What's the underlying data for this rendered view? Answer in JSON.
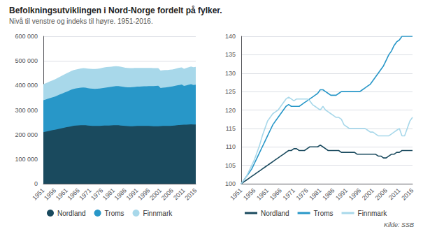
{
  "chart_data": [
    {
      "type": "area",
      "title": "Befolkningsutviklingen i Nord-Norge fordelt på fylker.",
      "subtitle": "Nivå til venstre og indeks til høyre. 1951-2016.",
      "stacked": true,
      "x": [
        1951,
        1952,
        1953,
        1954,
        1955,
        1956,
        1957,
        1958,
        1959,
        1960,
        1961,
        1962,
        1963,
        1964,
        1965,
        1966,
        1967,
        1968,
        1969,
        1970,
        1971,
        1972,
        1973,
        1974,
        1975,
        1976,
        1977,
        1978,
        1979,
        1980,
        1981,
        1982,
        1983,
        1984,
        1985,
        1986,
        1987,
        1988,
        1989,
        1990,
        1991,
        1992,
        1993,
        1994,
        1995,
        1996,
        1997,
        1998,
        1999,
        2000,
        2001,
        2002,
        2003,
        2004,
        2005,
        2006,
        2007,
        2008,
        2009,
        2010,
        2011,
        2012,
        2013,
        2014,
        2015,
        2016
      ],
      "xlim": [
        1951,
        2016
      ],
      "xticks": [
        1951,
        1956,
        1961,
        1966,
        1971,
        1976,
        1981,
        1986,
        1991,
        1996,
        2001,
        2006,
        2011,
        2016
      ],
      "ylim": [
        0,
        600000
      ],
      "yticks": [
        0,
        {
          "value": 100000,
          "label": "100 000"
        },
        {
          "value": 200000,
          "label": "200 000"
        },
        {
          "value": 300000,
          "label": "300 000"
        },
        {
          "value": 400000,
          "label": "400 000"
        },
        {
          "value": 500000,
          "label": "500 000"
        },
        {
          "value": 600000,
          "label": "600 000"
        }
      ],
      "grid": true,
      "legend": "bottom",
      "series": [
        {
          "name": "Nordland",
          "color": "#1a4a5e",
          "values": [
            210000,
            212000,
            214000,
            216000,
            218000,
            220000,
            222000,
            224000,
            226000,
            228000,
            230000,
            232000,
            234000,
            236000,
            237000,
            237500,
            238000,
            238500,
            238000,
            237000,
            236000,
            235500,
            235000,
            235000,
            235500,
            236000,
            236500,
            237000,
            237000,
            237500,
            238000,
            238500,
            238000,
            237000,
            236000,
            235000,
            234500,
            234000,
            234000,
            234500,
            235000,
            235000,
            235000,
            235000,
            235000,
            235000,
            234500,
            234000,
            234000,
            234000,
            234500,
            235000,
            235000,
            235000,
            235500,
            236000,
            237000,
            238500,
            239000,
            239500,
            240000,
            240500,
            241000,
            241500,
            241000,
            241000
          ]
        },
        {
          "name": "Troms",
          "color": "#2897c8",
          "values": [
            130000,
            131000,
            132000,
            133000,
            134000,
            135000,
            137000,
            139000,
            141000,
            143000,
            145000,
            147000,
            149000,
            150000,
            151000,
            152000,
            153000,
            153500,
            153000,
            152000,
            151500,
            151000,
            151000,
            151500,
            152000,
            153000,
            154000,
            155000,
            156000,
            157000,
            158000,
            159000,
            159500,
            159000,
            158500,
            158000,
            158000,
            158500,
            159000,
            159500,
            160000,
            160500,
            161000,
            161500,
            162000,
            162500,
            163000,
            163500,
            164000,
            164500,
            155000,
            156000,
            157000,
            158000,
            159000,
            160000,
            161000,
            162000,
            163000,
            164000,
            158000,
            160000,
            162000,
            164000,
            161000,
            162000
          ]
        },
        {
          "name": "Finnmark",
          "color": "#a8d8ea",
          "values": [
            65000,
            66000,
            67000,
            68000,
            69000,
            70000,
            71000,
            72000,
            73000,
            74000,
            75000,
            75500,
            76000,
            76500,
            77000,
            77500,
            78000,
            78500,
            79000,
            79500,
            80000,
            80500,
            81000,
            81500,
            82000,
            82500,
            83000,
            83000,
            82500,
            82000,
            81500,
            81000,
            80500,
            80000,
            79500,
            79000,
            78500,
            78000,
            77500,
            77000,
            76500,
            76000,
            75500,
            75000,
            74500,
            74000,
            73500,
            73000,
            72500,
            72000,
            71500,
            71000,
            70500,
            70000,
            69500,
            69000,
            69000,
            69500,
            70000,
            70000,
            70000,
            70500,
            71000,
            71500,
            72000,
            72500
          ]
        }
      ]
    },
    {
      "type": "line",
      "annotations": [
        "Kilde: SSB"
      ],
      "x": [
        1951,
        1952,
        1953,
        1954,
        1955,
        1956,
        1957,
        1958,
        1959,
        1960,
        1961,
        1962,
        1963,
        1964,
        1965,
        1966,
        1967,
        1968,
        1969,
        1970,
        1971,
        1972,
        1973,
        1974,
        1975,
        1976,
        1977,
        1978,
        1979,
        1980,
        1981,
        1982,
        1983,
        1984,
        1985,
        1986,
        1987,
        1988,
        1989,
        1990,
        1991,
        1992,
        1993,
        1994,
        1995,
        1996,
        1997,
        1998,
        1999,
        2000,
        2001,
        2002,
        2003,
        2004,
        2005,
        2006,
        2007,
        2008,
        2009,
        2010,
        2011,
        2012,
        2013,
        2014,
        2015,
        2016
      ],
      "xlim": [
        1951,
        2016
      ],
      "xticks": [
        1951,
        1956,
        1961,
        1966,
        1971,
        1976,
        1981,
        1986,
        1991,
        1996,
        2001,
        2006,
        2011,
        2016
      ],
      "ylim": [
        100,
        140
      ],
      "yticks": [
        100,
        105,
        110,
        115,
        120,
        125,
        130,
        135,
        140
      ],
      "grid": true,
      "legend": "bottom",
      "series": [
        {
          "name": "Nordland",
          "color": "#1a4a5e",
          "values": [
            100,
            100.5,
            101,
            101.5,
            102,
            102.5,
            103,
            103.5,
            104,
            104.5,
            105,
            105.5,
            106,
            106.5,
            107,
            107.5,
            108,
            108.5,
            109,
            109,
            109.5,
            109.5,
            109,
            109,
            109,
            109.5,
            110,
            110,
            110,
            110,
            110.5,
            110,
            109.5,
            109,
            109,
            109,
            109,
            109,
            108.5,
            108.5,
            108.5,
            108.5,
            108.5,
            108.5,
            108,
            108,
            108,
            108,
            108,
            108,
            108,
            108,
            107.5,
            107.5,
            107,
            107,
            107.5,
            108,
            108,
            108.5,
            108.5,
            109,
            109,
            109,
            109,
            109
          ]
        },
        {
          "name": "Troms",
          "color": "#2897c8",
          "values": [
            100,
            101,
            102,
            103,
            104,
            105.5,
            107,
            108.5,
            110,
            111.5,
            113,
            114.5,
            116,
            117,
            118,
            119,
            120,
            121,
            121.5,
            121,
            121,
            121,
            121,
            121.5,
            122,
            122.5,
            123,
            123.5,
            124,
            124.5,
            125.5,
            125.5,
            125,
            124.5,
            124,
            124,
            124,
            124.5,
            125,
            125,
            125,
            125,
            125,
            125,
            125,
            125,
            125.5,
            126,
            126.5,
            127,
            128,
            129,
            130,
            131,
            132,
            133.5,
            135,
            136,
            137.5,
            138.5,
            139,
            140,
            140,
            140,
            140,
            140
          ]
        },
        {
          "name": "Finnmark",
          "color": "#a8d8ea",
          "values": [
            100,
            101,
            102,
            103.5,
            105,
            106.5,
            108.5,
            110.5,
            113,
            115,
            117,
            118,
            119,
            119.5,
            120,
            121,
            122,
            123,
            123.5,
            123,
            122.5,
            123,
            123,
            123,
            123,
            123,
            122.5,
            121.5,
            121,
            120.5,
            120,
            121,
            120,
            119.5,
            119,
            118.5,
            118,
            118,
            117.5,
            116,
            115.5,
            115,
            115,
            115,
            115,
            115,
            115,
            115,
            114.5,
            114,
            114,
            113.5,
            113,
            113,
            113,
            113,
            113,
            113.5,
            114,
            114.5,
            115,
            113,
            113,
            115,
            117,
            118
          ]
        }
      ]
    }
  ]
}
